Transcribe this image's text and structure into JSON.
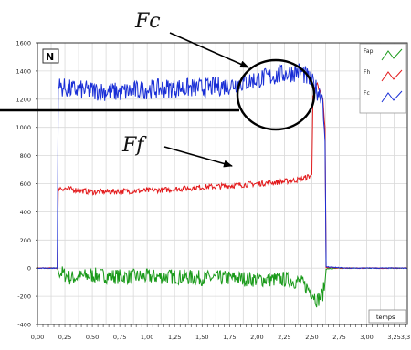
{
  "chart_data": {
    "type": "line",
    "unit_label": "N",
    "x_unit_label": "temps",
    "xlim": [
      0,
      3.37
    ],
    "ylim": [
      -400,
      1600
    ],
    "x_ticks": [
      0,
      0.25,
      0.5,
      0.75,
      1.0,
      1.25,
      1.5,
      1.75,
      2.0,
      2.25,
      2.5,
      2.75,
      3.0,
      3.25,
      3.37
    ],
    "x_tick_labels": [
      "0,00",
      "0,25",
      "0,50",
      "0,75",
      "1,00",
      "1,25",
      "1,50",
      "1,75",
      "2,00",
      "2,25",
      "2,50",
      "2,75",
      "3,00",
      "3,25",
      "3,37"
    ],
    "y_ticks": [
      -400,
      -200,
      0,
      200,
      400,
      600,
      800,
      1000,
      1200,
      1400,
      1600
    ],
    "y_tick_labels": [
      "-400",
      "-200",
      "0",
      "200",
      "400",
      "600",
      "800",
      "1000",
      "1200",
      "1400",
      "1600"
    ],
    "grid": true,
    "legend_position": "top-right",
    "annotations": [
      {
        "text": "Fc",
        "points_to": [
          2.35,
          1390
        ]
      },
      {
        "text": "Ff",
        "points_to": [
          2.0,
          900
        ]
      }
    ],
    "series": [
      {
        "name": "Fap",
        "color": "#1a9a1a",
        "x": [
          0,
          0.18,
          0.19,
          0.3,
          0.5,
          0.75,
          1.0,
          1.25,
          1.5,
          1.75,
          2.0,
          2.25,
          2.4,
          2.5,
          2.55,
          2.6,
          2.62,
          2.63,
          2.8,
          3.0,
          3.37
        ],
        "y": [
          0,
          0,
          -20,
          -70,
          -50,
          -60,
          -60,
          -60,
          -70,
          -70,
          -80,
          -80,
          -100,
          -170,
          -230,
          -180,
          -100,
          -5,
          0,
          0,
          0
        ]
      },
      {
        "name": "Fh",
        "color": "#e31a1c",
        "x": [
          0,
          0.18,
          0.19,
          0.3,
          0.5,
          0.75,
          1.0,
          1.25,
          1.5,
          1.75,
          2.0,
          2.25,
          2.4,
          2.5,
          2.51,
          2.55,
          2.6,
          2.62,
          2.63,
          2.8,
          3.37
        ],
        "y": [
          0,
          0,
          570,
          560,
          540,
          545,
          550,
          560,
          575,
          585,
          600,
          615,
          630,
          660,
          1240,
          1300,
          1200,
          1000,
          5,
          0,
          0
        ]
      },
      {
        "name": "Fc",
        "color": "#1a2fd6",
        "x": [
          0,
          0.18,
          0.19,
          0.3,
          0.5,
          0.75,
          1.0,
          1.25,
          1.5,
          1.75,
          2.0,
          2.25,
          2.4,
          2.5,
          2.55,
          2.6,
          2.62,
          2.63,
          2.8,
          3.37
        ],
        "y": [
          0,
          0,
          1290,
          1270,
          1260,
          1250,
          1270,
          1280,
          1280,
          1300,
          1340,
          1380,
          1400,
          1320,
          1260,
          1220,
          900,
          10,
          0,
          0
        ]
      }
    ]
  }
}
